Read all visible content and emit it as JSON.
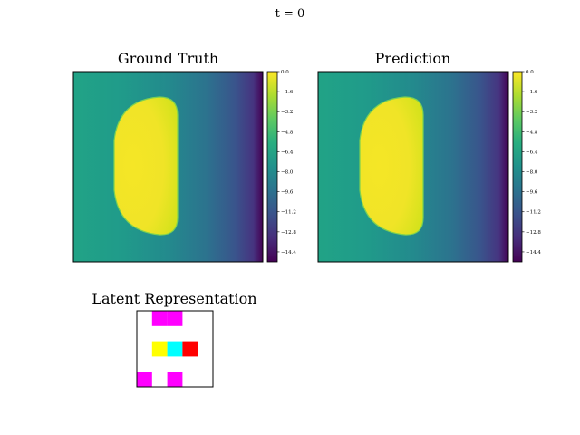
{
  "figure": {
    "suptitle": "t = 0"
  },
  "panels": {
    "ground_truth": {
      "title": "Ground Truth"
    },
    "prediction": {
      "title": "Prediction"
    },
    "latent": {
      "title": "Latent Representation"
    }
  },
  "chart_data": [
    {
      "type": "heatmap",
      "title": "Ground Truth",
      "xlabel": "",
      "ylabel": "",
      "grid": false,
      "colormap": "viridis",
      "colorbar": {
        "vmin": -15.2,
        "vmax": 0.0,
        "ticks": [
          "0.0",
          "−1.6",
          "−3.2",
          "−4.8",
          "−6.4",
          "−8.0",
          "−9.6",
          "−11.2",
          "−12.8",
          "−14.4"
        ]
      },
      "field": {
        "background": "horizontal gradient",
        "left_edge_value": -7.0,
        "right_edge_value": -15.2,
        "blob": {
          "shape": "D-shaped region",
          "value": -0.5
        }
      }
    },
    {
      "type": "heatmap",
      "title": "Prediction",
      "xlabel": "",
      "ylabel": "",
      "grid": false,
      "colormap": "viridis",
      "colorbar": {
        "vmin": -15.2,
        "vmax": 0.0,
        "ticks": [
          "0.0",
          "−1.6",
          "−3.2",
          "−4.8",
          "−6.4",
          "−8.0",
          "−9.6",
          "−11.2",
          "−12.8",
          "−14.4"
        ]
      },
      "field": {
        "background": "horizontal gradient",
        "left_edge_value": -7.0,
        "right_edge_value": -15.2,
        "blob": {
          "shape": "D-shaped region",
          "value": -0.5
        }
      }
    },
    {
      "type": "heatmap",
      "title": "Latent Representation",
      "grid_size": [
        5,
        5
      ],
      "cells": [
        {
          "row": 0,
          "col": 1,
          "color": "#ff00ff"
        },
        {
          "row": 0,
          "col": 2,
          "color": "#ff00ff"
        },
        {
          "row": 2,
          "col": 1,
          "color": "#ffff00"
        },
        {
          "row": 2,
          "col": 2,
          "color": "#00ffff"
        },
        {
          "row": 2,
          "col": 3,
          "color": "#ff0000"
        },
        {
          "row": 4,
          "col": 0,
          "color": "#ff00ff"
        },
        {
          "row": 4,
          "col": 2,
          "color": "#ff00ff"
        }
      ]
    }
  ]
}
